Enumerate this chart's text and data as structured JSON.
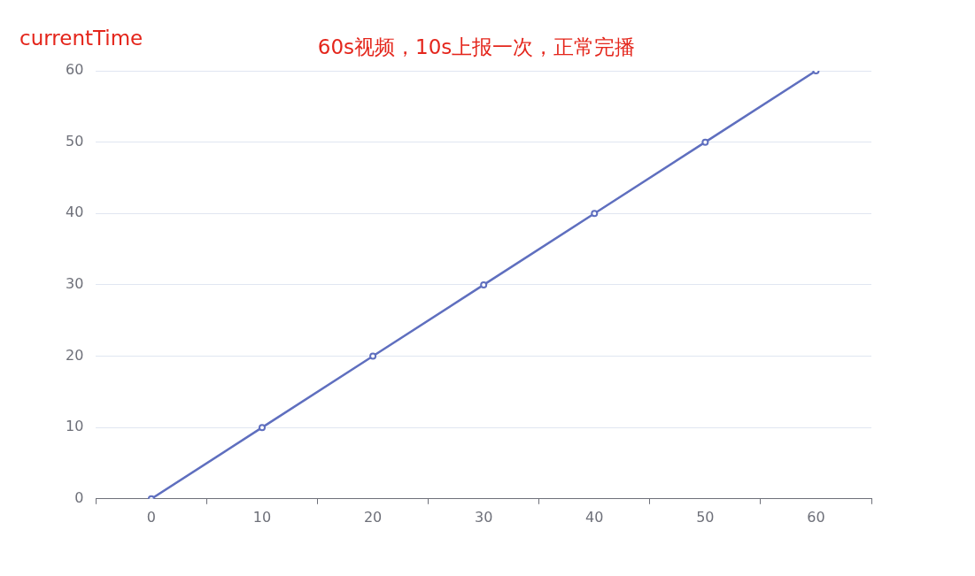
{
  "chart_data": {
    "type": "line",
    "title": "60s视频，10s上报一次，正常完播",
    "ylabel": "currentTime",
    "categories": [
      "0",
      "10",
      "20",
      "30",
      "40",
      "50",
      "60"
    ],
    "series": [
      {
        "color": "#5f6fbf",
        "values": [
          0,
          10,
          20,
          30,
          40,
          50,
          60
        ]
      }
    ],
    "ylim": [
      0,
      60
    ],
    "yticks": [
      0,
      10,
      20,
      30,
      40,
      50,
      60
    ],
    "grid": "y",
    "marker": "circle"
  }
}
